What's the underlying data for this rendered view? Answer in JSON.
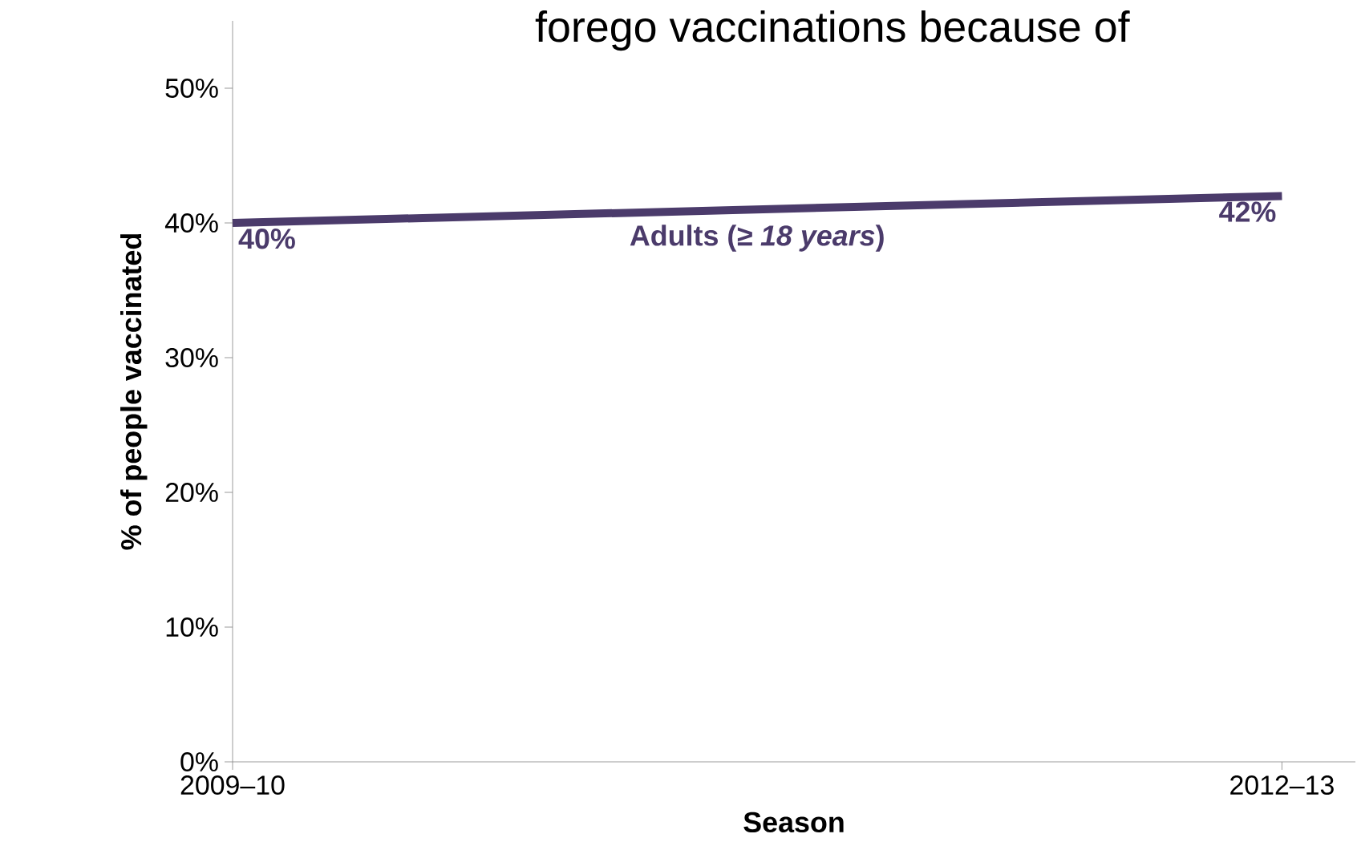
{
  "chart_data": {
    "type": "line",
    "title": "forego vaccinations because of",
    "xlabel": "Season",
    "ylabel": "% of people vaccinated",
    "categories": [
      "2009–10",
      "2012–13"
    ],
    "series": [
      {
        "name": "Adults (*≥ 18 years*)",
        "color": "#4b3b6b",
        "values": [
          40,
          42
        ],
        "value_labels": [
          "40%",
          "42%"
        ]
      }
    ],
    "ylim": [
      0,
      55
    ],
    "yticks": [
      {
        "value": 0,
        "label": "0%"
      },
      {
        "value": 10,
        "label": "10%"
      },
      {
        "value": 20,
        "label": "20%"
      },
      {
        "value": 30,
        "label": "30%"
      },
      {
        "value": 40,
        "label": "40%"
      },
      {
        "value": 50,
        "label": "50%"
      }
    ],
    "marker": "none",
    "line_style": "solid"
  }
}
